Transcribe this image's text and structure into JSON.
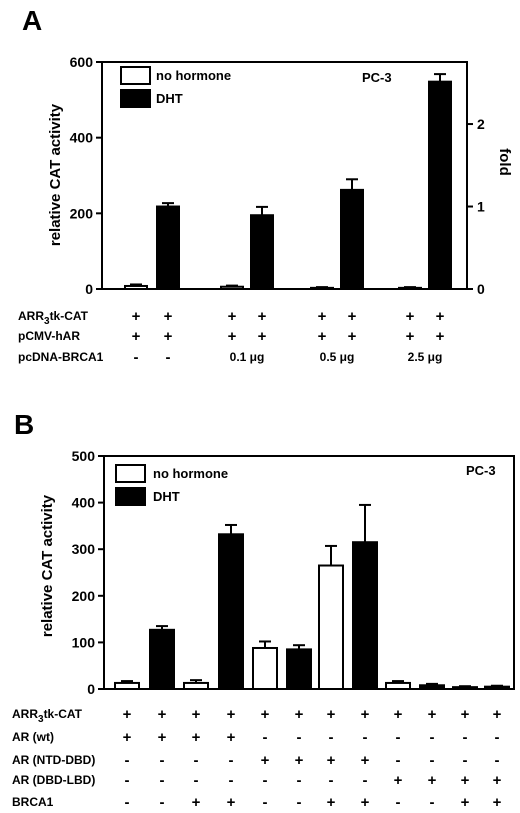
{
  "chart_data": [
    {
      "panel": "A",
      "type": "bar",
      "annotation": "PC-3",
      "ylabel": "relative CAT activity",
      "ylabel_right": "fold",
      "ylim": [
        0,
        600
      ],
      "yticks": [
        0,
        200,
        400,
        600
      ],
      "yticks_right": [
        0,
        1,
        2
      ],
      "right_axis_scale": 218,
      "legend": [
        {
          "label": "no hormone",
          "fill": "#ffffff"
        },
        {
          "label": "DHT",
          "fill": "#000000"
        }
      ],
      "legend_position": "top-left",
      "bars": [
        {
          "group": 0,
          "series": "no hormone",
          "value": 8,
          "error": 4
        },
        {
          "group": 0,
          "series": "DHT",
          "value": 218,
          "error": 9
        },
        {
          "group": 1,
          "series": "no hormone",
          "value": 6,
          "error": 3
        },
        {
          "group": 1,
          "series": "DHT",
          "value": 195,
          "error": 22
        },
        {
          "group": 2,
          "series": "no hormone",
          "value": 3,
          "error": 2
        },
        {
          "group": 2,
          "series": "DHT",
          "value": 262,
          "error": 28
        },
        {
          "group": 3,
          "series": "no hormone",
          "value": 3,
          "error": 2
        },
        {
          "group": 3,
          "series": "DHT",
          "value": 548,
          "error": 20
        }
      ],
      "conditions": [
        {
          "label": "ARR3tk-CAT",
          "sub": {
            "before": "ARR",
            "sub": "3",
            "after": "tk-CAT"
          },
          "signs": [
            "+",
            "+",
            "+",
            "+",
            "+",
            "+",
            "+",
            "+"
          ]
        },
        {
          "label": "pCMV-hAR",
          "signs": [
            "+",
            "+",
            "+",
            "+",
            "+",
            "+",
            "+",
            "+"
          ]
        },
        {
          "label": "pcDNA-BRCA1",
          "signs": [
            "-",
            "-",
            "",
            "",
            "",
            "",
            "",
            ""
          ],
          "group_labels": [
            "",
            "0.1 μg",
            "0.5 μg",
            "2.5 μg"
          ]
        }
      ]
    },
    {
      "panel": "B",
      "type": "bar",
      "annotation": "PC-3",
      "ylabel": "relative CAT activity",
      "ylim": [
        0,
        500
      ],
      "yticks": [
        0,
        100,
        200,
        300,
        400,
        500
      ],
      "legend": [
        {
          "label": "no hormone",
          "fill": "#ffffff"
        },
        {
          "label": "DHT",
          "fill": "#000000"
        }
      ],
      "legend_position": "top-left",
      "bars": [
        {
          "series": "no hormone",
          "value": 13,
          "error": 4
        },
        {
          "series": "DHT",
          "value": 127,
          "error": 8
        },
        {
          "series": "no hormone",
          "value": 13,
          "error": 6
        },
        {
          "series": "DHT",
          "value": 332,
          "error": 20
        },
        {
          "series": "no hormone",
          "value": 88,
          "error": 14
        },
        {
          "series": "DHT",
          "value": 85,
          "error": 9
        },
        {
          "series": "no hormone",
          "value": 265,
          "error": 42
        },
        {
          "series": "DHT",
          "value": 315,
          "error": 80
        },
        {
          "series": "no hormone",
          "value": 13,
          "error": 4
        },
        {
          "series": "DHT",
          "value": 8,
          "error": 3
        },
        {
          "series": "DHT",
          "value": 4,
          "error": 2
        },
        {
          "series": "DHT",
          "value": 5,
          "error": 2
        }
      ],
      "conditions": [
        {
          "label": "ARR3tk-CAT",
          "sub": {
            "before": "ARR",
            "sub": "3",
            "after": "tk-CAT"
          },
          "signs": [
            "+",
            "+",
            "+",
            "+",
            "+",
            "+",
            "+",
            "+",
            "+",
            "+",
            "+",
            "+"
          ]
        },
        {
          "label": "AR (wt)",
          "signs": [
            "+",
            "+",
            "+",
            "+",
            "-",
            "-",
            "-",
            "-",
            "-",
            "-",
            "-",
            "-"
          ]
        },
        {
          "label": "AR (NTD-DBD)",
          "signs": [
            "-",
            "-",
            "-",
            "-",
            "+",
            "+",
            "+",
            "+",
            "-",
            "-",
            "-",
            "-"
          ]
        },
        {
          "label": "AR (DBD-LBD)",
          "signs": [
            "-",
            "-",
            "-",
            "-",
            "-",
            "-",
            "-",
            "-",
            "+",
            "+",
            "+",
            "+"
          ]
        },
        {
          "label": "BRCA1",
          "signs": [
            "-",
            "-",
            "+",
            "+",
            "-",
            "-",
            "+",
            "+",
            "-",
            "-",
            "+",
            "+"
          ]
        }
      ]
    }
  ]
}
